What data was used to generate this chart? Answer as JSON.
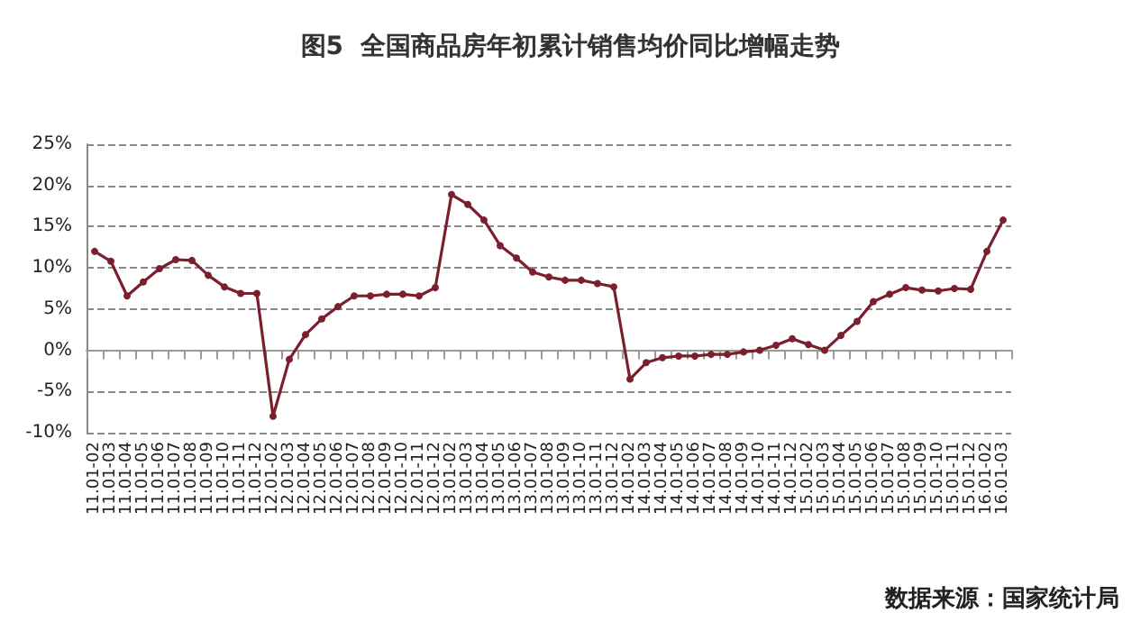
{
  "chart_data": {
    "type": "line",
    "title": "图5  全国商品房年初累计销售均价同比增幅走势",
    "categories": [
      "11.01-02",
      "11.01-03",
      "11.01-04",
      "11.01-05",
      "11.01-06",
      "11.01-07",
      "11.01-08",
      "11.01-09",
      "11.01-10",
      "11.01-11",
      "11.01-12",
      "12.01-02",
      "12.01-03",
      "12.01-04",
      "12.01-05",
      "12.01-06",
      "12.01-07",
      "12.01-08",
      "12.01-09",
      "12.01-10",
      "12.01-11",
      "12.01-12",
      "13.01-02",
      "13.01-03",
      "13.01-04",
      "13.01-05",
      "13.01-06",
      "13.01-07",
      "13.01-08",
      "13.01-09",
      "13.01-10",
      "13.01-11",
      "13.01-12",
      "14.01-02",
      "14.01-03",
      "14.01-04",
      "14.01-05",
      "14.01-06",
      "14.01-07",
      "14.01-08",
      "14.01-09",
      "14.01-10",
      "14.01-11",
      "14.01-12",
      "15.01-02",
      "15.01-03",
      "15.01-04",
      "15.01-05",
      "15.01-06",
      "15.01-07",
      "15.01-08",
      "15.01-09",
      "15.01-10",
      "15.01-11",
      "15.01-12",
      "16.01-02",
      "16.01-03"
    ],
    "series": [
      {
        "color": "#7b1f2f",
        "values": [
          12.0,
          10.8,
          6.6,
          8.3,
          9.9,
          11.0,
          10.9,
          9.1,
          7.7,
          6.9,
          6.9,
          -8.0,
          -1.1,
          1.9,
          3.8,
          5.3,
          6.6,
          6.6,
          6.8,
          6.8,
          6.6,
          7.6,
          18.9,
          17.7,
          15.8,
          12.7,
          11.2,
          9.5,
          8.9,
          8.5,
          8.5,
          8.1,
          7.7,
          -3.5,
          -1.5,
          -0.9,
          -0.7,
          -0.7,
          -0.5,
          -0.5,
          -0.2,
          0.0,
          0.6,
          1.4,
          0.7,
          0.0,
          1.8,
          3.5,
          5.9,
          6.8,
          7.6,
          7.3,
          7.2,
          7.5,
          7.4,
          12.0,
          15.8
        ]
      }
    ],
    "ylim": [
      -10,
      25
    ],
    "yticks": [
      {
        "value": -10,
        "label": "-10%"
      },
      {
        "value": -5,
        "label": "-5%"
      },
      {
        "value": 0,
        "label": "0%"
      },
      {
        "value": 5,
        "label": "5%"
      },
      {
        "value": 10,
        "label": "10%"
      },
      {
        "value": 15,
        "label": "15%"
      },
      {
        "value": 20,
        "label": "20%"
      },
      {
        "value": 25,
        "label": "25%"
      }
    ],
    "grid": "y",
    "marker": "circle",
    "line_style": "solid",
    "annotations": [
      "数据来源：国家统计局"
    ]
  }
}
